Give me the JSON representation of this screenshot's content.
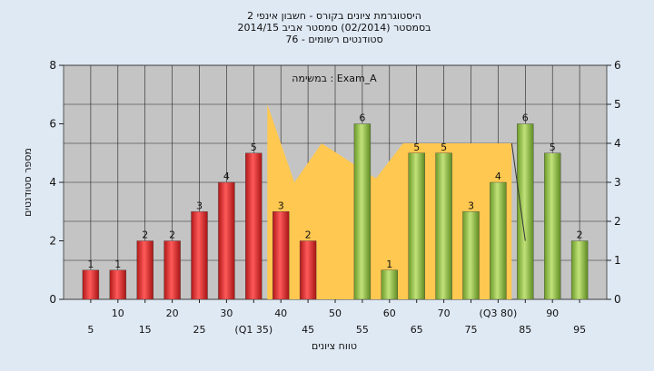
{
  "chart_data": {
    "type": "bar",
    "title_lines": [
      "היסטוגרמת ציונים בקורס - חשבון אינפי 2",
      "בסמסטר  (02/2014)  סמסטר אביב 2014/15",
      "סטודנטים רשומים - 76"
    ],
    "annotation": "במשימה : Exam_A",
    "xlabel": "טווח ציונים",
    "ylabel": "מספר סטודנטים",
    "ylim": [
      0,
      8
    ],
    "y_ticks": [
      "0",
      "2",
      "4",
      "6",
      "8"
    ],
    "y2lim": [
      0,
      6
    ],
    "y2_ticks": [
      "0",
      "1",
      "2",
      "3",
      "4",
      "5",
      "6"
    ],
    "grid": true,
    "categories": [
      "5",
      "10",
      "15",
      "20",
      "25",
      "30",
      "(Q1 35)",
      "40",
      "45",
      "50",
      "55",
      "60",
      "65",
      "70",
      "75",
      "(Q3 80)",
      "85",
      "90",
      "95"
    ],
    "values": [
      1,
      1,
      2,
      2,
      3,
      4,
      5,
      3,
      2,
      0,
      6,
      1,
      5,
      5,
      3,
      4,
      6,
      5,
      2
    ],
    "bar_groups": [
      "fail",
      "fail",
      "fail",
      "fail",
      "fail",
      "fail",
      "fail",
      "fail",
      "fail",
      "fail",
      "pass",
      "pass",
      "pass",
      "pass",
      "pass",
      "pass",
      "pass",
      "pass",
      "pass"
    ],
    "area_series": {
      "axis": "right",
      "x_positions": [
        6.5,
        6.5,
        7.5,
        8.5,
        10.5,
        11.5,
        15.5,
        15.5
      ],
      "values": [
        0,
        5,
        3,
        4,
        3.1,
        4,
        4,
        0
      ]
    },
    "trend_line": {
      "from": [
        15.5,
        4
      ],
      "to": [
        16,
        1.5
      ]
    },
    "colors": {
      "background": "#dfe9f4",
      "plot_area": "#c4c4c4",
      "area_fill": "#ffc850",
      "fail_bar": "#e03030",
      "pass_bar": "#92c448"
    }
  }
}
